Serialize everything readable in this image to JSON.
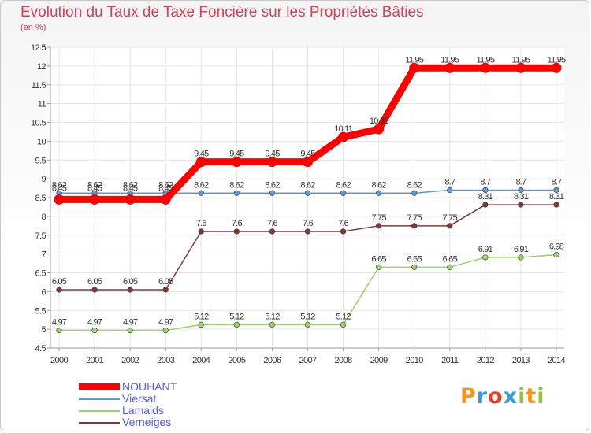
{
  "header": {
    "title": "Evolution du Taux de Taxe Foncière sur les Propriétés Bâties",
    "unit": "(en %)"
  },
  "brand": {
    "logo_letters": [
      "P",
      "r",
      "o",
      "x",
      "i",
      "t",
      "i"
    ],
    "logo_colors": [
      "#f7941d",
      "#3a9ad9",
      "#e8402f",
      "#3a9ad9",
      "#8cc63f",
      "#f7941d",
      "#8cc63f"
    ]
  },
  "colors": {
    "title": "#d2405a",
    "legend_text": "#5a5ae0",
    "grid": "#e6e6e6"
  },
  "chart_data": {
    "type": "line",
    "x": [
      "2000",
      "2001",
      "2002",
      "2003",
      "2004",
      "2005",
      "2006",
      "2007",
      "2008",
      "2009",
      "2010",
      "2011",
      "2012",
      "2013",
      "2014"
    ],
    "ylim": [
      4.5,
      12.5
    ],
    "yticks": [
      "4.5",
      "5",
      "5.5",
      "6",
      "6.5",
      "7",
      "7.5",
      "8",
      "8.5",
      "9",
      "9.5",
      "10",
      "10.5",
      "11",
      "11.5",
      "12",
      "12.5"
    ],
    "grid": true,
    "legend_position": "bottom-left",
    "series": [
      {
        "name": "NOUHANT",
        "color": "#ff0000",
        "width": 9,
        "values": [
          8.45,
          8.45,
          8.45,
          8.45,
          9.45,
          9.45,
          9.45,
          9.45,
          10.11,
          10.32,
          11.95,
          11.95,
          11.95,
          11.95,
          11.95
        ],
        "labels": [
          "8.45",
          "8.45",
          "8.45",
          "8.45",
          "9.45",
          "9.45",
          "9.45",
          "9.45",
          "10.11",
          "10.32",
          "11.95",
          "11.95",
          "11.95",
          "11.95",
          "11.95"
        ]
      },
      {
        "name": "Viersat",
        "color": "#5b9bd5",
        "width": 1.5,
        "values": [
          8.62,
          8.62,
          8.62,
          8.62,
          8.62,
          8.62,
          8.62,
          8.62,
          8.62,
          8.62,
          8.62,
          8.7,
          8.7,
          8.7,
          8.7
        ],
        "labels": [
          "8.62",
          "8.62",
          "8.62",
          "8.62",
          "8.62",
          "8.62",
          "8.62",
          "8.62",
          "8.62",
          "8.62",
          "8.62",
          "8.7",
          "8.7",
          "8.7",
          "8.7"
        ]
      },
      {
        "name": "Lamaids",
        "color": "#9ad26e",
        "width": 1.5,
        "values": [
          4.97,
          4.97,
          4.97,
          4.97,
          5.12,
          5.12,
          5.12,
          5.12,
          5.12,
          6.65,
          6.65,
          6.65,
          6.91,
          6.91,
          6.98
        ],
        "labels": [
          "4.97",
          "4.97",
          "4.97",
          "4.97",
          "5.12",
          "5.12",
          "5.12",
          "5.12",
          "5.12",
          "6.65",
          "6.65",
          "6.65",
          "6.91",
          "6.91",
          "6.98"
        ]
      },
      {
        "name": "Verneiges",
        "color": "#7b3a3a",
        "width": 1.5,
        "values": [
          6.05,
          6.05,
          6.05,
          6.05,
          7.6,
          7.6,
          7.6,
          7.6,
          7.6,
          7.75,
          7.75,
          7.75,
          8.31,
          8.31,
          8.31
        ],
        "labels": [
          "6.05",
          "6.05",
          "6.05",
          "6.05",
          "7.6",
          "7.6",
          "7.6",
          "7.6",
          "7.6",
          "7.75",
          "7.75",
          "7.75",
          "8.31",
          "8.31",
          "8.31"
        ]
      }
    ]
  }
}
